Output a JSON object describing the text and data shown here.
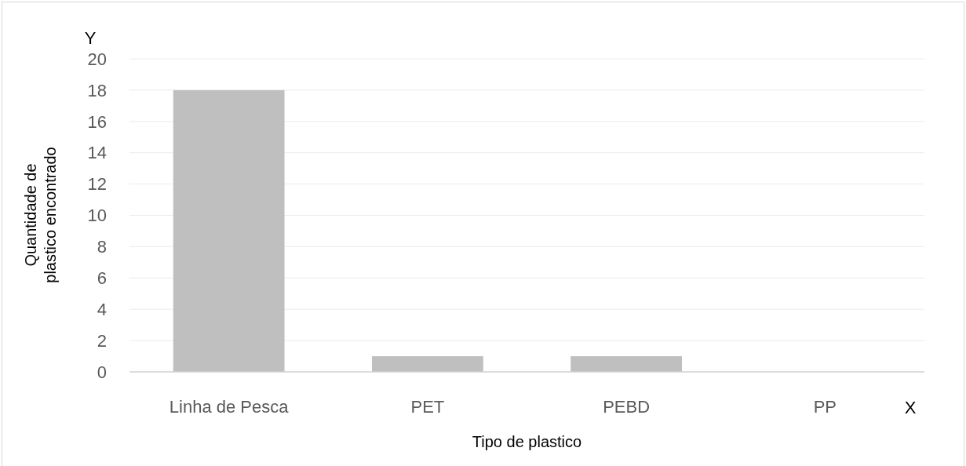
{
  "chart_data": {
    "type": "bar",
    "xlabel": "Tipo de plastico",
    "ylabel": "Quantidade de plastico encontrado",
    "categories": [
      "Linha de Pesca",
      "PET",
      "PEBD",
      "PP"
    ],
    "values": [
      18,
      1,
      1,
      0
    ],
    "color": "#bfbfbf",
    "ylim": [
      0,
      20
    ],
    "yticks": [
      0,
      2,
      4,
      6,
      8,
      10,
      12,
      14,
      16,
      18,
      20
    ],
    "grid": "y",
    "annotations": [
      "Y",
      "X"
    ]
  }
}
